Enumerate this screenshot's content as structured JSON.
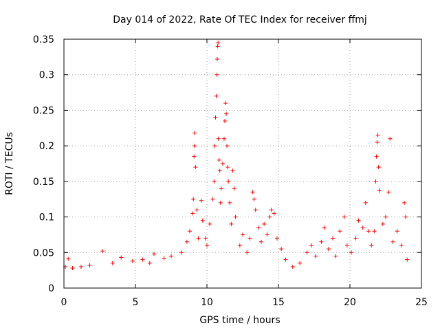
{
  "chart_data": {
    "type": "scatter",
    "title": "Day 014 of 2022, Rate Of TEC Index for receiver ffmj",
    "xlabel": "GPS time / hours",
    "ylabel": "ROTI / TECUs",
    "xlim": [
      0,
      25
    ],
    "ylim": [
      0,
      0.35
    ],
    "xticks": [
      0,
      5,
      10,
      15,
      20,
      25
    ],
    "xtick_labels": [
      "0",
      "5",
      "10",
      "15",
      "20",
      "25"
    ],
    "yticks": [
      0,
      0.05,
      0.1,
      0.15,
      0.2,
      0.25,
      0.3,
      0.35
    ],
    "ytick_labels": [
      "0",
      "0.05",
      "0.1",
      "0.15",
      "0.2",
      "0.25",
      "0.3",
      "0.35"
    ],
    "grid": true,
    "marker": "+",
    "color": "#ff0000",
    "series": [
      {
        "name": "ROTI",
        "points": [
          [
            0.1,
            0.03
          ],
          [
            0.3,
            0.041
          ],
          [
            0.6,
            0.028
          ],
          [
            1.2,
            0.03
          ],
          [
            1.8,
            0.032
          ],
          [
            2.7,
            0.052
          ],
          [
            3.4,
            0.035
          ],
          [
            4.0,
            0.043
          ],
          [
            4.8,
            0.038
          ],
          [
            5.5,
            0.04
          ],
          [
            6.0,
            0.035
          ],
          [
            6.3,
            0.048
          ],
          [
            7.0,
            0.042
          ],
          [
            7.5,
            0.045
          ],
          [
            8.2,
            0.05
          ],
          [
            8.6,
            0.065
          ],
          [
            8.8,
            0.08
          ],
          [
            9.0,
            0.105
          ],
          [
            9.05,
            0.125
          ],
          [
            9.1,
            0.185
          ],
          [
            9.12,
            0.2
          ],
          [
            9.14,
            0.218
          ],
          [
            9.2,
            0.17
          ],
          [
            9.3,
            0.11
          ],
          [
            9.4,
            0.07
          ],
          [
            9.6,
            0.123
          ],
          [
            9.7,
            0.095
          ],
          [
            9.9,
            0.07
          ],
          [
            10.0,
            0.06
          ],
          [
            10.2,
            0.09
          ],
          [
            10.4,
            0.125
          ],
          [
            10.5,
            0.15
          ],
          [
            10.55,
            0.2
          ],
          [
            10.6,
            0.24
          ],
          [
            10.65,
            0.27
          ],
          [
            10.7,
            0.3
          ],
          [
            10.72,
            0.322
          ],
          [
            10.75,
            0.34
          ],
          [
            10.78,
            0.345
          ],
          [
            10.8,
            0.21
          ],
          [
            10.85,
            0.18
          ],
          [
            10.9,
            0.165
          ],
          [
            10.95,
            0.12
          ],
          [
            11.0,
            0.14
          ],
          [
            11.1,
            0.175
          ],
          [
            11.2,
            0.21
          ],
          [
            11.25,
            0.235
          ],
          [
            11.3,
            0.26
          ],
          [
            11.35,
            0.245
          ],
          [
            11.4,
            0.2
          ],
          [
            11.45,
            0.17
          ],
          [
            11.5,
            0.15
          ],
          [
            11.6,
            0.12
          ],
          [
            11.7,
            0.09
          ],
          [
            11.8,
            0.165
          ],
          [
            11.9,
            0.14
          ],
          [
            12.0,
            0.1
          ],
          [
            12.3,
            0.06
          ],
          [
            12.5,
            0.075
          ],
          [
            12.8,
            0.05
          ],
          [
            13.0,
            0.07
          ],
          [
            13.2,
            0.135
          ],
          [
            13.3,
            0.125
          ],
          [
            13.4,
            0.11
          ],
          [
            13.6,
            0.085
          ],
          [
            13.8,
            0.065
          ],
          [
            14.0,
            0.09
          ],
          [
            14.2,
            0.075
          ],
          [
            14.4,
            0.1
          ],
          [
            14.5,
            0.11
          ],
          [
            14.7,
            0.105
          ],
          [
            14.9,
            0.07
          ],
          [
            15.2,
            0.055
          ],
          [
            15.5,
            0.04
          ],
          [
            16.0,
            0.03
          ],
          [
            16.5,
            0.035
          ],
          [
            17.0,
            0.05
          ],
          [
            17.3,
            0.06
          ],
          [
            17.6,
            0.045
          ],
          [
            18.0,
            0.065
          ],
          [
            18.2,
            0.085
          ],
          [
            18.5,
            0.055
          ],
          [
            18.8,
            0.07
          ],
          [
            19.0,
            0.045
          ],
          [
            19.3,
            0.08
          ],
          [
            19.6,
            0.1
          ],
          [
            19.8,
            0.06
          ],
          [
            20.1,
            0.05
          ],
          [
            20.4,
            0.07
          ],
          [
            20.6,
            0.095
          ],
          [
            20.9,
            0.085
          ],
          [
            21.1,
            0.12
          ],
          [
            21.3,
            0.08
          ],
          [
            21.5,
            0.06
          ],
          [
            21.7,
            0.08
          ],
          [
            21.8,
            0.15
          ],
          [
            21.85,
            0.185
          ],
          [
            21.9,
            0.205
          ],
          [
            21.95,
            0.215
          ],
          [
            22.0,
            0.17
          ],
          [
            22.05,
            0.137
          ],
          [
            22.3,
            0.09
          ],
          [
            22.5,
            0.1
          ],
          [
            22.7,
            0.135
          ],
          [
            22.8,
            0.21
          ],
          [
            23.0,
            0.065
          ],
          [
            23.3,
            0.08
          ],
          [
            23.6,
            0.06
          ],
          [
            23.8,
            0.12
          ],
          [
            23.9,
            0.1
          ],
          [
            24.0,
            0.04
          ]
        ]
      }
    ]
  }
}
